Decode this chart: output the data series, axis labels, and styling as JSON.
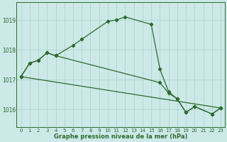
{
  "title": "Graphe pression niveau de la mer (hPa)",
  "background_color": "#cce9e8",
  "grid_color": "#aed4d3",
  "line_color": "#2d6a2d",
  "xlim": [
    -0.5,
    23.5
  ],
  "ylim": [
    1015.4,
    1019.6
  ],
  "yticks": [
    1016,
    1017,
    1018,
    1019
  ],
  "ytick_labels": [
    "1016",
    "1017",
    "1018",
    "1019"
  ],
  "xtick_labels": [
    "0",
    "1",
    "2",
    "3",
    "4",
    "5",
    "6",
    "7",
    "8",
    "9",
    "10",
    "11",
    "12",
    "13",
    "14",
    "15",
    "16",
    "17",
    "18",
    "19",
    "20",
    "21",
    "22",
    "23"
  ],
  "line1_x": [
    0,
    1,
    2,
    3,
    4,
    6,
    7,
    10,
    11,
    12,
    15,
    16,
    17,
    18,
    19,
    20,
    22,
    23
  ],
  "line1_y": [
    1017.1,
    1017.55,
    1017.65,
    1017.9,
    1017.8,
    1018.15,
    1018.35,
    1018.95,
    1019.0,
    1019.1,
    1018.85,
    1017.35,
    1016.6,
    1016.35,
    1015.9,
    1016.1,
    1015.85,
    1016.05
  ],
  "line2_x": [
    0,
    1,
    2,
    3,
    4,
    16,
    17,
    18,
    19,
    20,
    22,
    23
  ],
  "line2_y": [
    1017.1,
    1017.55,
    1017.65,
    1017.9,
    1017.8,
    1016.9,
    1016.55,
    1016.35,
    1015.9,
    1016.1,
    1015.85,
    1016.05
  ],
  "line3_x": [
    0,
    23
  ],
  "line3_y": [
    1017.1,
    1016.05
  ],
  "marker_style": "D",
  "marker_size": 2.2,
  "line_width": 0.9
}
